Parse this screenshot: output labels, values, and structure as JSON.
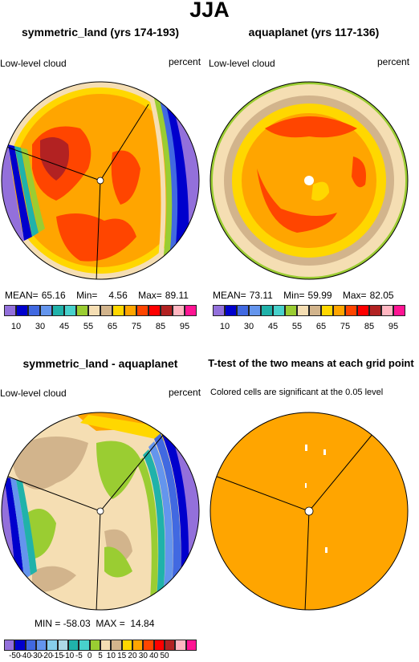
{
  "page_title": "JJA",
  "panels": {
    "p1": {
      "title": "symmetric_land (yrs 174-193)",
      "left_label": "Low-level cloud",
      "right_label": "percent",
      "stats": {
        "mean_label": "MEAN=",
        "mean": "65.16",
        "min_label": "Min=",
        "min": "4.56",
        "max_label": "Max=",
        "max": "89.11"
      }
    },
    "p2": {
      "title": "aquaplanet (yrs 117-136)",
      "left_label": "Low-level cloud",
      "right_label": "percent",
      "stats": {
        "mean_label": "MEAN=",
        "mean": "73.11",
        "min_label": "Min=",
        "min": "59.99",
        "max_label": "Max=",
        "max": "82.05"
      }
    },
    "p3": {
      "title": "symmetric_land - aquaplanet",
      "left_label": "Low-level cloud",
      "right_label": "percent",
      "stats_text": "MIN = -58.03  MAX =  14.84"
    },
    "p4": {
      "title": "T-test of the two means at each grid point",
      "subtitle": "Colored cells are significant at the 0.05 level"
    }
  },
  "colorbar_abs": {
    "colors": [
      "#9370db",
      "#0000cd",
      "#4169e1",
      "#6495ed",
      "#20b2aa",
      "#48d1cc",
      "#9acd32",
      "#f5deb3",
      "#d2b48c",
      "#ffd700",
      "#ffa500",
      "#ff4500",
      "#ff0000",
      "#b22222",
      "#ffb6c1",
      "#ff1493"
    ],
    "tick_labels": [
      "10",
      "30",
      "45",
      "55",
      "65",
      "75",
      "85",
      "95"
    ]
  },
  "colorbar_diff": {
    "colors": [
      "#9370db",
      "#0000cd",
      "#4169e1",
      "#6495ed",
      "#87ceeb",
      "#add8e6",
      "#20b2aa",
      "#48d1cc",
      "#9acd32",
      "#f5deb3",
      "#d2b48c",
      "#ffd700",
      "#ffa500",
      "#ff4500",
      "#ff0000",
      "#b22222",
      "#ffb6c1",
      "#ff1493"
    ],
    "tick_labels": [
      "-50",
      "-40",
      "-30",
      "-20",
      "-15",
      "-10",
      "-5",
      "0",
      "5",
      "10",
      "15",
      "20",
      "30",
      "40",
      "50"
    ]
  },
  "colors": {
    "ttest_fill": "#ffa500",
    "boundary": "#000000"
  }
}
